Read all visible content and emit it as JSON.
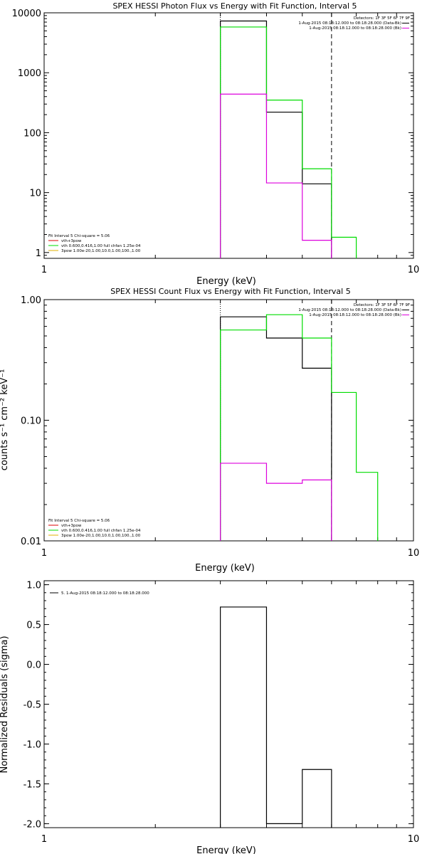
{
  "chart_data": [
    {
      "type": "line",
      "title": "SPEX HESSI Photon Flux vs Energy with Fit Function, Interval 5",
      "xlabel": "Energy (keV)",
      "ylabel": "",
      "xscale": "log",
      "yscale": "log",
      "xlim": [
        1,
        10
      ],
      "ylim": [
        0.8,
        10000
      ],
      "x_ticks": [
        "1",
        "10"
      ],
      "y_ticks": [
        "1",
        "10",
        "100",
        "1000",
        "10000"
      ],
      "y_tick_values": [
        1,
        10,
        100,
        1000,
        10000
      ],
      "info_lines": [
        "Detectors: 1F 3F 5F 6F 7F 9F",
        "1-Aug-2015 08:18:12.000 to 08:18:28.000 (Data-Bk)",
        "1-Aug-2015 08:18:12.000 to 08:18:28.000 (Bk)"
      ],
      "fit_lines": [
        "Fit Interval 5   Chi-square = 5.06",
        "vth+3pow",
        "vth 0.600,0.416,1.00  full chfan 1.25e-04",
        "3pow 1.00e-20,1.00,10.0,1.00,100.,1.00"
      ],
      "bin_edges": [
        3.0,
        4.0,
        5.0,
        6.0,
        7.0
      ],
      "series": [
        {
          "name": "Data-Bk",
          "color": "#000000",
          "bin_edges": [
            3.0,
            4.0,
            5.0,
            6.0
          ],
          "values": [
            7300,
            220,
            14
          ]
        },
        {
          "name": "vth+3pow",
          "color": "#00dd00",
          "bin_edges": [
            3.0,
            4.0,
            5.0,
            6.0,
            7.0
          ],
          "values": [
            5800,
            350,
            25,
            1.8
          ]
        },
        {
          "name": "Bk",
          "color": "#dd00dd",
          "bin_edges": [
            3.0,
            4.0,
            5.0,
            6.0
          ],
          "values": [
            440,
            14.5,
            1.6
          ]
        }
      ],
      "vlines": [
        {
          "x": 3.0,
          "style": "dotted"
        },
        {
          "x": 6.0,
          "style": "dashed"
        }
      ]
    },
    {
      "type": "line",
      "title": "SPEX HESSI Count Flux vs Energy with Fit Function, Interval 5",
      "xlabel": "Energy (keV)",
      "ylabel": "counts s⁻¹ cm⁻² keV⁻¹",
      "xscale": "log",
      "yscale": "log",
      "xlim": [
        1,
        10
      ],
      "ylim": [
        0.01,
        1.0
      ],
      "x_ticks": [
        "1",
        "10"
      ],
      "y_ticks": [
        "0.01",
        "0.10",
        "1.00"
      ],
      "y_tick_values": [
        0.01,
        0.1,
        1.0
      ],
      "info_lines": [
        "Detectors: 1F 3F 5F 6F 7F 9F",
        "1-Aug-2015 08:18:12.000 to 08:18:28.000 (Data-Bk)",
        "1-Aug-2015 08:18:12.000 to 08:18:28.000 (Bk)"
      ],
      "fit_lines": [
        "Fit Interval 5   Chi-square = 5.06",
        "vth+3pow",
        "vth 0.600,0.416,1.00  full chfan 1.25e-04",
        "3pow 1.00e-20,1.00,10.0,1.00,100.,1.00"
      ],
      "series": [
        {
          "name": "Data-Bk",
          "color": "#000000",
          "bin_edges": [
            3.0,
            4.0,
            5.0,
            6.0
          ],
          "values": [
            0.72,
            0.48,
            0.27
          ]
        },
        {
          "name": "vth+3pow",
          "color": "#00dd00",
          "bin_edges": [
            3.0,
            4.0,
            5.0,
            6.0,
            7.0,
            8.0
          ],
          "values": [
            0.56,
            0.75,
            0.48,
            0.17,
            0.037
          ]
        },
        {
          "name": "Bk",
          "color": "#dd00dd",
          "bin_edges": [
            3.0,
            4.0,
            5.0,
            6.0
          ],
          "values": [
            0.044,
            0.03,
            0.032
          ]
        }
      ],
      "vlines": [
        {
          "x": 3.0,
          "style": "dotted"
        },
        {
          "x": 6.0,
          "style": "dashed"
        }
      ]
    },
    {
      "type": "line",
      "title": "",
      "xlabel": "Energy (keV)",
      "ylabel": "Normalized Residuals (sigma)",
      "xscale": "log",
      "yscale": "linear",
      "xlim": [
        1,
        10
      ],
      "ylim": [
        -2.05,
        1.05
      ],
      "x_ticks": [
        "1",
        "10"
      ],
      "y_ticks": [
        "1.0",
        "0.5",
        "0.0",
        "-0.5",
        "-1.0",
        "-1.5",
        "-2.0"
      ],
      "y_tick_values": [
        1.0,
        0.5,
        0.0,
        -0.5,
        -1.0,
        -1.5,
        -2.0
      ],
      "legend": "5.  1-Aug-2015 08:18:12.000 to 08:18:28.000",
      "series": [
        {
          "name": "5",
          "color": "#000000",
          "bin_edges": [
            3.0,
            4.0,
            5.0,
            6.0
          ],
          "values": [
            0.72,
            -2.0,
            -1.32
          ]
        }
      ]
    }
  ]
}
